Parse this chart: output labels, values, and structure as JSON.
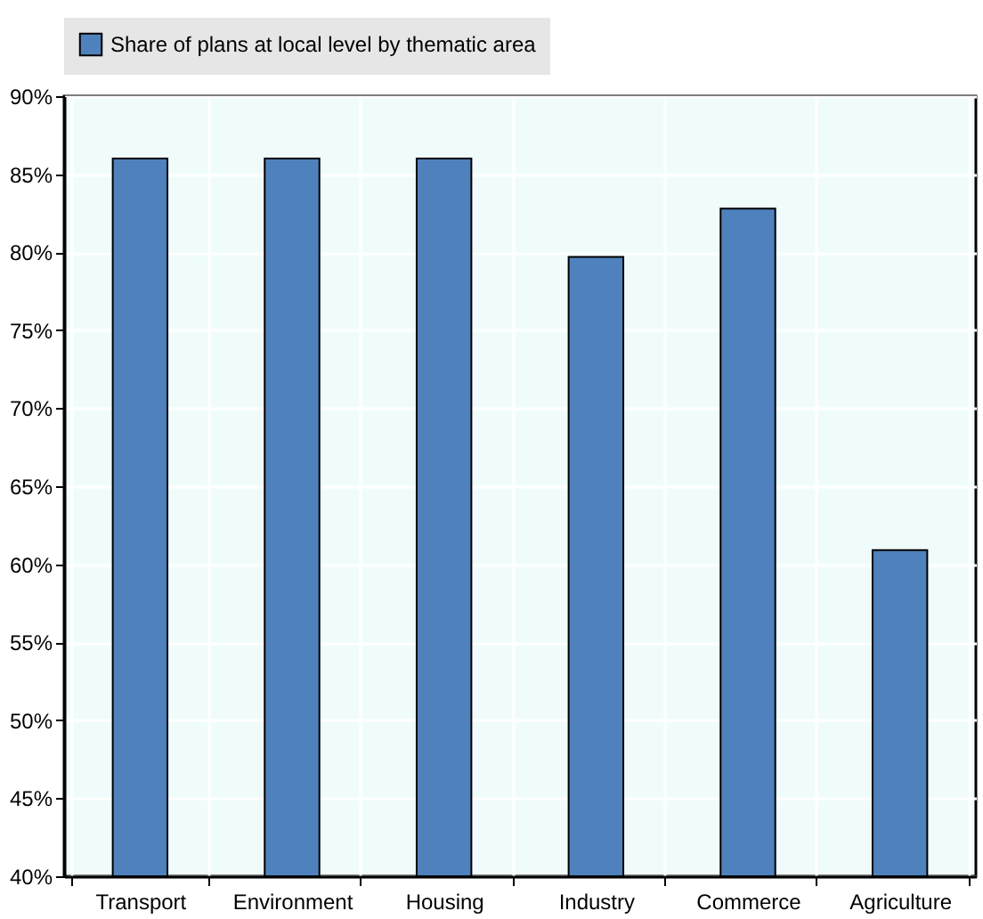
{
  "chart_data": {
    "type": "bar",
    "categories": [
      "Transport",
      "Environment",
      "Housing",
      "Industry",
      "Commerce",
      "Agriculture"
    ],
    "series": [
      {
        "name": "Share of plans at local level by thematic area",
        "color": "#4f81bd",
        "values": [
          86,
          86,
          86,
          79.7,
          82.8,
          60.9
        ]
      }
    ],
    "ylim": [
      40,
      90
    ],
    "yticks": [
      {
        "value": 40,
        "label": "40%"
      },
      {
        "value": 45,
        "label": "45%"
      },
      {
        "value": 50,
        "label": "50%"
      },
      {
        "value": 55,
        "label": "55%"
      },
      {
        "value": 60,
        "label": "60%"
      },
      {
        "value": 65,
        "label": "65%"
      },
      {
        "value": 70,
        "label": "70%"
      },
      {
        "value": 75,
        "label": "75%"
      },
      {
        "value": 80,
        "label": "80%"
      },
      {
        "value": 85,
        "label": "85%"
      },
      {
        "value": 90,
        "label": "90%"
      }
    ],
    "grid": true,
    "legend": "top"
  }
}
